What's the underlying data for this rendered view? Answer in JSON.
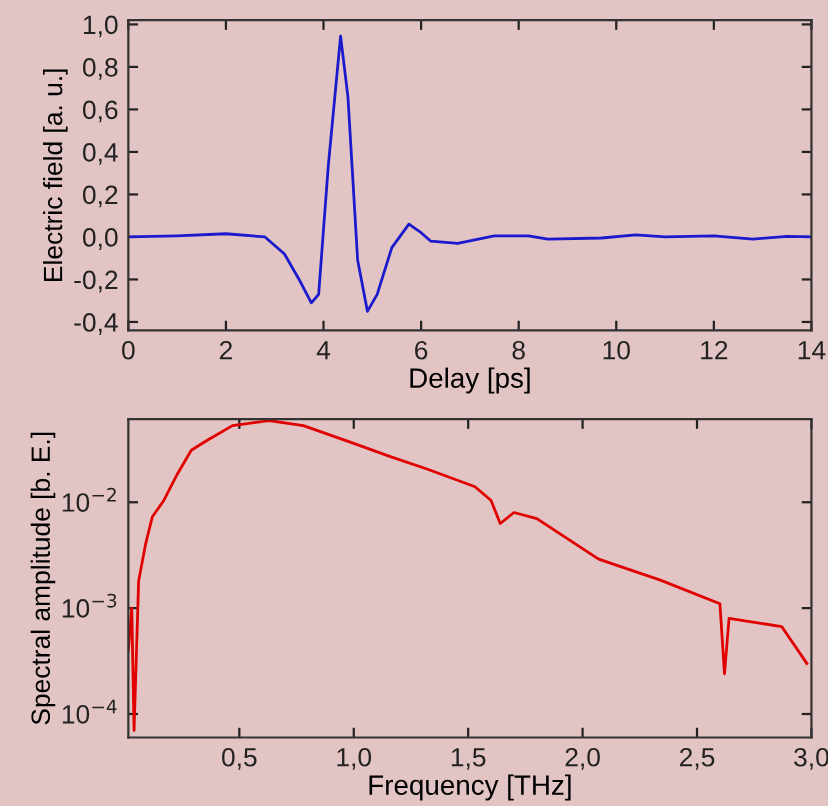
{
  "chart_data": [
    {
      "type": "line",
      "xlabel": "Delay [ps]",
      "ylabel": "Electric field [a. u.]",
      "xlim": [
        0,
        14
      ],
      "ylim": [
        -0.44,
        1.02
      ],
      "xticks": [
        0,
        2,
        4,
        6,
        8,
        10,
        12,
        14
      ],
      "yticks": [
        {
          "value": -0.4,
          "label": "-0,4"
        },
        {
          "value": -0.2,
          "label": "-0,2"
        },
        {
          "value": 0,
          "label": "0,0"
        },
        {
          "value": 0.2,
          "label": "0,2"
        },
        {
          "value": 0.4,
          "label": "0,4"
        },
        {
          "value": 0.6,
          "label": "0,6"
        },
        {
          "value": 0.8,
          "label": "0,8"
        },
        {
          "value": 1.0,
          "label": "1,0"
        }
      ],
      "grid": false,
      "legend": false,
      "series": [
        {
          "color": "#1a1acc",
          "x": [
            0,
            1,
            2,
            2.8,
            3.2,
            3.5,
            3.75,
            3.9,
            4.1,
            4.35,
            4.5,
            4.7,
            4.9,
            5.1,
            5.4,
            5.75,
            6.0,
            6.2,
            6.75,
            7.5,
            8.2,
            8.6,
            9.7,
            10.4,
            11,
            12,
            12.8,
            13.5,
            14
          ],
          "values": [
            0,
            0.005,
            0.015,
            0,
            -0.08,
            -0.2,
            -0.31,
            -0.27,
            0.34,
            0.945,
            0.66,
            -0.11,
            -0.35,
            -0.27,
            -0.05,
            0.06,
            0.02,
            -0.02,
            -0.03,
            0.005,
            0.005,
            -0.01,
            -0.005,
            0.01,
            0,
            0.005,
            -0.01,
            0.003,
            0
          ]
        }
      ]
    },
    {
      "type": "line",
      "xlabel": "Frequency [THz]",
      "ylabel": "Spectral amplitude [b. E.]",
      "log": "y",
      "xlim": [
        0.015,
        3.0
      ],
      "ylim": [
        6e-05,
        0.061
      ],
      "xticks": [
        {
          "value": 0.5,
          "label": "0,5"
        },
        {
          "value": 1.0,
          "label": "1,0"
        },
        {
          "value": 1.5,
          "label": "1,5"
        },
        {
          "value": 2.0,
          "label": "2,0"
        },
        {
          "value": 2.5,
          "label": "2,5"
        },
        {
          "value": 3.0,
          "label": "3,0"
        }
      ],
      "yticks": [
        {
          "value": 0.0001,
          "label": "10$^{−4}$"
        },
        {
          "value": 0.001,
          "label": "10$^{−3}$"
        },
        {
          "value": 0.01,
          "label": "10$^{−2}$"
        }
      ],
      "grid": false,
      "legend": false,
      "series": [
        {
          "color": "#e00000",
          "x": [
            0.015,
            0.03,
            0.04,
            0.06,
            0.09,
            0.12,
            0.17,
            0.23,
            0.29,
            0.36,
            0.47,
            0.63,
            0.78,
            1.0,
            1.16,
            1.32,
            1.53,
            1.6,
            1.64,
            1.7,
            1.8,
            2.07,
            2.34,
            2.6,
            2.62,
            2.64,
            2.87,
            2.98
          ],
          "values": [
            0.0004,
            0.001,
            7e-05,
            0.0018,
            0.004,
            0.0073,
            0.0104,
            0.0186,
            0.031,
            0.0385,
            0.053,
            0.059,
            0.053,
            0.036,
            0.027,
            0.0206,
            0.014,
            0.0104,
            0.0063,
            0.008,
            0.007,
            0.0029,
            0.00184,
            0.0011,
            0.00024,
            0.0008,
            0.00067,
            0.0003
          ]
        }
      ]
    }
  ]
}
